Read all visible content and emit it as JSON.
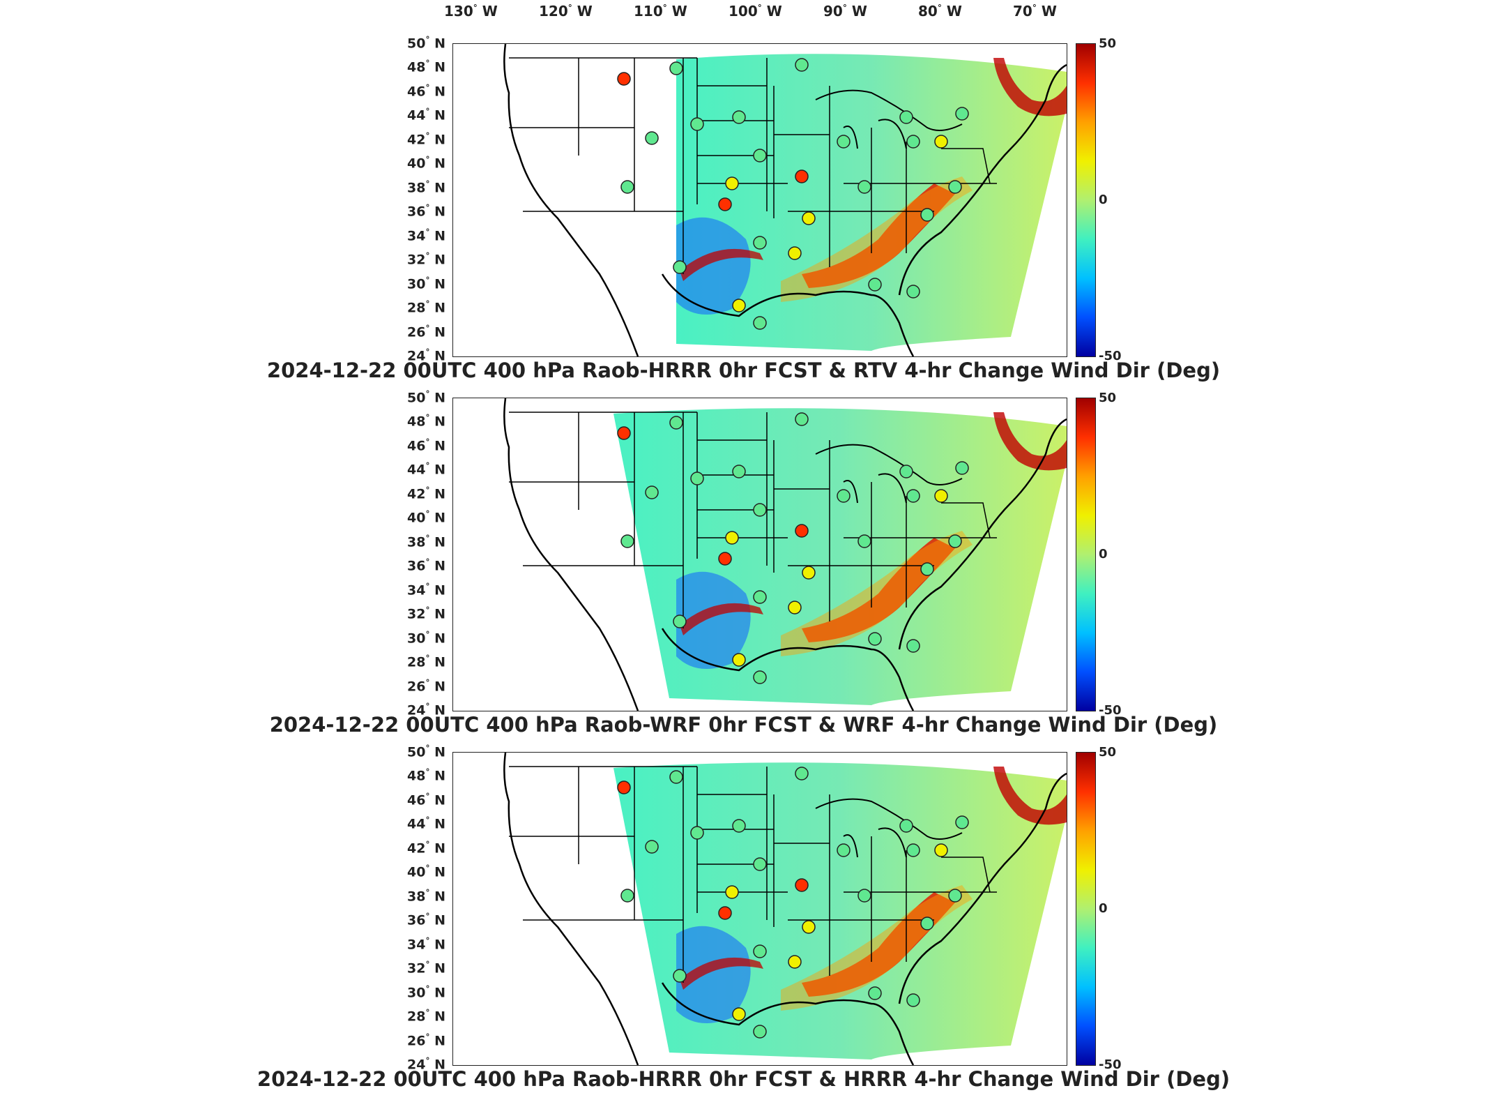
{
  "lon_ticks": [
    {
      "value": "130",
      "hemi": "W"
    },
    {
      "value": "120",
      "hemi": "W"
    },
    {
      "value": "110",
      "hemi": "W"
    },
    {
      "value": "100",
      "hemi": "W"
    },
    {
      "value": "90",
      "hemi": "W"
    },
    {
      "value": "80",
      "hemi": "W"
    },
    {
      "value": "70",
      "hemi": "W"
    }
  ],
  "lat_ticks": [
    "50",
    "48",
    "46",
    "44",
    "42",
    "40",
    "38",
    "36",
    "34",
    "32",
    "30",
    "28",
    "26",
    "24"
  ],
  "lat_hemi": "N",
  "colorbar": {
    "max": "50",
    "mid": "0",
    "min": "-50",
    "colors": [
      "#0000a0",
      "#0050ff",
      "#00c0ff",
      "#40f0c0",
      "#b0f070",
      "#f0f000",
      "#ffa000",
      "#ff3000",
      "#a00000"
    ]
  },
  "panels": [
    {
      "title": "2024-12-22 00UTC 400 hPa Raob-HRRR 0hr FCST & RTV 4-hr Change Wind Dir (Deg)"
    },
    {
      "title": "2024-12-22 00UTC 400 hPa Raob-WRF 0hr FCST & WRF 4-hr Change Wind Dir (Deg)"
    },
    {
      "title": "2024-12-22 00UTC 400 hPa Raob-HRRR 0hr FCST & HRRR 4-hr Change Wind Dir (Deg)"
    }
  ]
}
